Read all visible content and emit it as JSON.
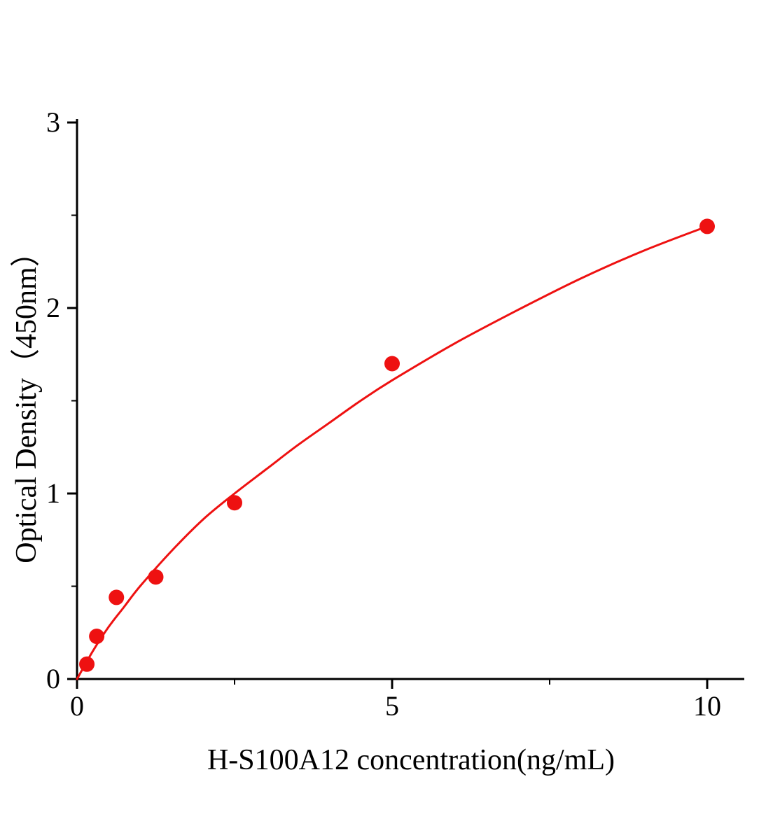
{
  "page": {
    "background": "#ffffff",
    "text_color": "#000000"
  },
  "chart_data": {
    "type": "scatter",
    "title": "",
    "xlabel": "H-S100A12 concentration(ng/mL)",
    "ylabel": "Optical Density（450nm）",
    "xlim": [
      0,
      10.6
    ],
    "ylim": [
      0,
      3
    ],
    "x_ticks": [
      0,
      5,
      10
    ],
    "x_minor_ticks": [
      2.5,
      7.5
    ],
    "y_ticks": [
      0,
      1,
      2,
      3
    ],
    "y_minor_ticks": [
      0.5,
      1.5,
      2.5
    ],
    "grid": false,
    "legend": "none",
    "accent_color": "#ee1111",
    "axis_color": "#000000",
    "series": [
      {
        "name": "standard-points",
        "type": "scatter",
        "color": "#ee1111",
        "marker_radius": 11,
        "x": [
          0.156,
          0.3125,
          0.625,
          1.25,
          2.5,
          5,
          10
        ],
        "y": [
          0.08,
          0.23,
          0.44,
          0.55,
          0.95,
          1.7,
          2.44
        ]
      },
      {
        "name": "fit-curve",
        "type": "line",
        "color": "#ee1111",
        "line_width": 3,
        "x": [
          0,
          0.25,
          0.5,
          0.75,
          1,
          1.5,
          2,
          2.5,
          3,
          3.5,
          4,
          4.5,
          5,
          6,
          7,
          8,
          9,
          10
        ],
        "y": [
          0.0,
          0.15,
          0.28,
          0.39,
          0.5,
          0.69,
          0.86,
          1.0,
          1.13,
          1.26,
          1.38,
          1.5,
          1.61,
          1.81,
          1.99,
          2.16,
          2.31,
          2.44
        ]
      }
    ]
  }
}
